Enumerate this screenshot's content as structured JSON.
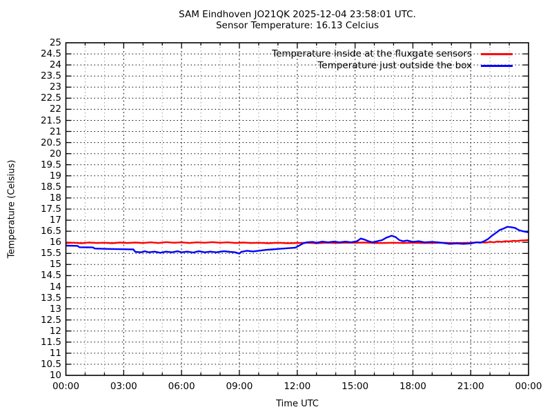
{
  "header": {
    "title": "SAM Eindhoven JO21QK 2025-12-04 23:58:01 UTC.",
    "subtitle": "Sensor Temperature: 16.13 Celcius"
  },
  "colors": {
    "series_inside": "#ff0000",
    "series_outside": "#0000ff",
    "grid_minor": "#9a9a9a",
    "grid_major": "#1a1a1a",
    "border": "#000000",
    "background": "#ffffff"
  },
  "chart_data": {
    "type": "line",
    "title": "SAM Eindhoven JO21QK 2025-12-04 23:58:01 UTC.",
    "subtitle": "Sensor Temperature: 16.13 Celcius",
    "xlabel": "Time UTC",
    "ylabel": "Temperature (Celsius)",
    "x_unit": "hours_utc",
    "xlim": [
      0,
      24
    ],
    "ylim": [
      10,
      25
    ],
    "ytick_step": 0.5,
    "xtick_step_hours": 3,
    "xtick_minor_step_hours": 1,
    "xtick_labels": [
      "00:00",
      "03:00",
      "06:00",
      "09:00",
      "12:00",
      "15:00",
      "18:00",
      "21:00",
      "00:00"
    ],
    "grid": true,
    "legend_position": "top-right-inside",
    "series": [
      {
        "name": "Temperature inside at the fluxgate sensors",
        "color": "#ff0000",
        "points": [
          [
            0,
            15.97
          ],
          [
            0.4,
            15.98
          ],
          [
            0.8,
            15.96
          ],
          [
            1.2,
            15.99
          ],
          [
            1.6,
            15.97
          ],
          [
            2,
            15.98
          ],
          [
            2.4,
            15.96
          ],
          [
            2.8,
            15.99
          ],
          [
            3.2,
            15.97
          ],
          [
            3.6,
            15.99
          ],
          [
            4,
            15.97
          ],
          [
            4.4,
            16.0
          ],
          [
            4.8,
            15.97
          ],
          [
            5.2,
            16.01
          ],
          [
            5.6,
            15.98
          ],
          [
            6,
            16.0
          ],
          [
            6.4,
            15.97
          ],
          [
            6.8,
            16.0
          ],
          [
            7.2,
            15.98
          ],
          [
            7.6,
            16.01
          ],
          [
            8,
            15.98
          ],
          [
            8.4,
            16.0
          ],
          [
            8.8,
            15.97
          ],
          [
            9.2,
            15.99
          ],
          [
            9.6,
            15.97
          ],
          [
            10,
            15.98
          ],
          [
            10.5,
            15.96
          ],
          [
            11,
            15.98
          ],
          [
            11.5,
            15.96
          ],
          [
            12,
            15.97
          ],
          [
            12.5,
            15.98
          ],
          [
            13,
            15.96
          ],
          [
            13.5,
            15.98
          ],
          [
            14,
            15.97
          ],
          [
            14.5,
            15.98
          ],
          [
            15,
            15.98
          ],
          [
            15.5,
            15.99
          ],
          [
            16,
            15.97
          ],
          [
            16.5,
            15.97
          ],
          [
            17,
            15.98
          ],
          [
            17.5,
            15.97
          ],
          [
            18,
            15.98
          ],
          [
            18.5,
            15.97
          ],
          [
            19,
            15.97
          ],
          [
            19.5,
            15.98
          ],
          [
            20,
            15.97
          ],
          [
            20.5,
            15.97
          ],
          [
            21,
            15.98
          ],
          [
            21.4,
            16.0
          ],
          [
            21.8,
            15.99
          ],
          [
            22,
            16.02
          ],
          [
            22.2,
            16.0
          ],
          [
            22.4,
            16.04
          ],
          [
            22.6,
            16.02
          ],
          [
            22.8,
            16.05
          ],
          [
            23,
            16.04
          ],
          [
            23.2,
            16.07
          ],
          [
            23.4,
            16.06
          ],
          [
            23.6,
            16.08
          ],
          [
            23.8,
            16.09
          ],
          [
            24,
            16.1
          ]
        ]
      },
      {
        "name": "Temperature just outside the box",
        "color": "#0000ff",
        "points": [
          [
            0,
            15.85
          ],
          [
            0.6,
            15.84
          ],
          [
            0.7,
            15.78
          ],
          [
            1.4,
            15.77
          ],
          [
            1.5,
            15.72
          ],
          [
            2.2,
            15.7
          ],
          [
            3,
            15.69
          ],
          [
            3.5,
            15.68
          ],
          [
            3.6,
            15.57
          ],
          [
            3.9,
            15.55
          ],
          [
            4.1,
            15.6
          ],
          [
            4.3,
            15.55
          ],
          [
            4.6,
            15.58
          ],
          [
            4.9,
            15.53
          ],
          [
            5.2,
            15.58
          ],
          [
            5.5,
            15.55
          ],
          [
            5.8,
            15.6
          ],
          [
            6,
            15.55
          ],
          [
            6.3,
            15.58
          ],
          [
            6.6,
            15.54
          ],
          [
            6.9,
            15.6
          ],
          [
            7.2,
            15.55
          ],
          [
            7.5,
            15.58
          ],
          [
            7.8,
            15.55
          ],
          [
            8.2,
            15.6
          ],
          [
            8.5,
            15.57
          ],
          [
            8.8,
            15.55
          ],
          [
            9,
            15.49
          ],
          [
            9.1,
            15.57
          ],
          [
            9.4,
            15.62
          ],
          [
            9.7,
            15.59
          ],
          [
            10,
            15.62
          ],
          [
            10.4,
            15.66
          ],
          [
            10.7,
            15.68
          ],
          [
            11,
            15.7
          ],
          [
            11.3,
            15.72
          ],
          [
            11.6,
            15.74
          ],
          [
            11.9,
            15.76
          ],
          [
            12.1,
            15.85
          ],
          [
            12.3,
            15.95
          ],
          [
            12.5,
            16.0
          ],
          [
            12.8,
            16.02
          ],
          [
            13,
            15.98
          ],
          [
            13.3,
            16.03
          ],
          [
            13.6,
            16.0
          ],
          [
            13.9,
            16.03
          ],
          [
            14.2,
            16.0
          ],
          [
            14.5,
            16.03
          ],
          [
            14.8,
            16.0
          ],
          [
            15.1,
            16.05
          ],
          [
            15.3,
            16.17
          ],
          [
            15.5,
            16.12
          ],
          [
            15.7,
            16.05
          ],
          [
            15.9,
            16.0
          ],
          [
            16.1,
            16.04
          ],
          [
            16.4,
            16.1
          ],
          [
            16.6,
            16.2
          ],
          [
            16.9,
            16.3
          ],
          [
            17.1,
            16.24
          ],
          [
            17.3,
            16.1
          ],
          [
            17.5,
            16.05
          ],
          [
            17.7,
            16.08
          ],
          [
            18,
            16.02
          ],
          [
            18.3,
            16.05
          ],
          [
            18.6,
            16.0
          ],
          [
            19,
            16.02
          ],
          [
            19.3,
            16.0
          ],
          [
            19.6,
            15.97
          ],
          [
            19.9,
            15.93
          ],
          [
            20.3,
            15.95
          ],
          [
            20.6,
            15.93
          ],
          [
            21,
            15.95
          ],
          [
            21.3,
            16.0
          ],
          [
            21.5,
            15.98
          ],
          [
            21.7,
            16.05
          ],
          [
            21.9,
            16.15
          ],
          [
            22.1,
            16.3
          ],
          [
            22.3,
            16.42
          ],
          [
            22.5,
            16.55
          ],
          [
            22.7,
            16.62
          ],
          [
            22.9,
            16.7
          ],
          [
            23.1,
            16.68
          ],
          [
            23.3,
            16.65
          ],
          [
            23.5,
            16.55
          ],
          [
            23.7,
            16.5
          ],
          [
            24,
            16.45
          ]
        ]
      }
    ]
  }
}
